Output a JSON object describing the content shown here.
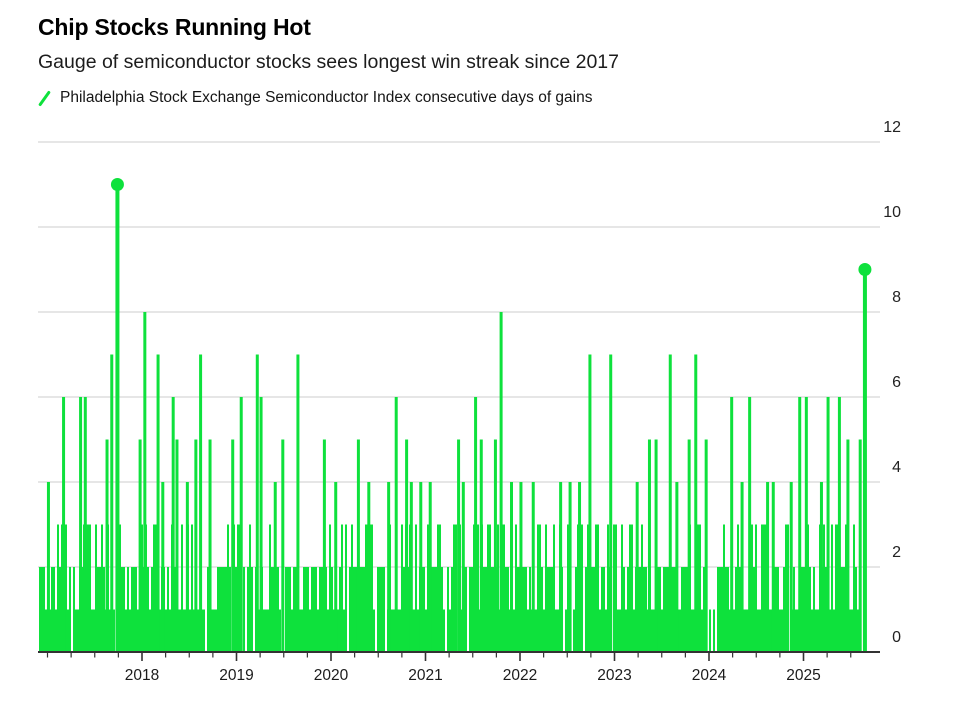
{
  "header": {
    "title": "Chip Stocks Running Hot",
    "subtitle": "Gauge of semiconductor stocks sees longest win streak since 2017"
  },
  "legend": {
    "label": "Philadelphia Stock Exchange Semiconductor Index consecutive days of gains"
  },
  "chart_data": {
    "type": "bar",
    "title": "Chip Stocks Running Hot",
    "subtitle": "Gauge of semiconductor stocks sees longest win streak since 2017",
    "series_name": "Philadelphia Stock Exchange Semiconductor Index consecutive days of gains",
    "ylabel": "consecutive days of gains",
    "ylim": [
      0,
      12
    ],
    "yticks": [
      0,
      2,
      4,
      6,
      8,
      10,
      12
    ],
    "axis_side": "right",
    "grid": "horizontal",
    "legend_position": "top-left",
    "x_range": [
      2016.91,
      2025.72
    ],
    "x_year_labels": [
      "2018",
      "2019",
      "2020",
      "2021",
      "2022",
      "2023",
      "2024",
      "2025"
    ],
    "minor_tick_interval_years": 0.25,
    "markers": [
      {
        "x": 2017.74,
        "v": 11
      },
      {
        "x": 2025.65,
        "v": 9
      }
    ],
    "streaks": [
      {
        "x": 2017.01,
        "v": 4
      },
      {
        "x": 2017.17,
        "v": 6
      },
      {
        "x": 2017.35,
        "v": 6
      },
      {
        "x": 2017.4,
        "v": 6
      },
      {
        "x": 2017.63,
        "v": 5
      },
      {
        "x": 2017.68,
        "v": 7
      },
      {
        "x": 2017.98,
        "v": 5
      },
      {
        "x": 2018.03,
        "v": 8
      },
      {
        "x": 2018.17,
        "v": 7
      },
      {
        "x": 2018.22,
        "v": 4
      },
      {
        "x": 2018.33,
        "v": 6
      },
      {
        "x": 2018.37,
        "v": 5
      },
      {
        "x": 2018.48,
        "v": 4
      },
      {
        "x": 2018.57,
        "v": 5
      },
      {
        "x": 2018.62,
        "v": 7
      },
      {
        "x": 2018.72,
        "v": 5
      },
      {
        "x": 2018.96,
        "v": 5
      },
      {
        "x": 2019.05,
        "v": 6
      },
      {
        "x": 2019.22,
        "v": 7
      },
      {
        "x": 2019.26,
        "v": 6
      },
      {
        "x": 2019.41,
        "v": 4
      },
      {
        "x": 2019.49,
        "v": 5
      },
      {
        "x": 2019.65,
        "v": 7
      },
      {
        "x": 2019.93,
        "v": 5
      },
      {
        "x": 2020.05,
        "v": 4
      },
      {
        "x": 2020.29,
        "v": 5
      },
      {
        "x": 2020.4,
        "v": 4
      },
      {
        "x": 2020.61,
        "v": 4
      },
      {
        "x": 2020.69,
        "v": 6
      },
      {
        "x": 2020.8,
        "v": 5
      },
      {
        "x": 2020.85,
        "v": 4
      },
      {
        "x": 2020.95,
        "v": 4
      },
      {
        "x": 2021.05,
        "v": 4
      },
      {
        "x": 2021.35,
        "v": 5
      },
      {
        "x": 2021.4,
        "v": 4
      },
      {
        "x": 2021.53,
        "v": 6
      },
      {
        "x": 2021.59,
        "v": 5
      },
      {
        "x": 2021.74,
        "v": 5
      },
      {
        "x": 2021.8,
        "v": 8
      },
      {
        "x": 2021.91,
        "v": 4
      },
      {
        "x": 2022.01,
        "v": 4
      },
      {
        "x": 2022.14,
        "v": 4
      },
      {
        "x": 2022.43,
        "v": 4
      },
      {
        "x": 2022.53,
        "v": 4
      },
      {
        "x": 2022.63,
        "v": 4
      },
      {
        "x": 2022.74,
        "v": 7
      },
      {
        "x": 2022.96,
        "v": 7
      },
      {
        "x": 2023.24,
        "v": 4
      },
      {
        "x": 2023.37,
        "v": 5
      },
      {
        "x": 2023.44,
        "v": 5
      },
      {
        "x": 2023.59,
        "v": 7
      },
      {
        "x": 2023.66,
        "v": 4
      },
      {
        "x": 2023.79,
        "v": 5
      },
      {
        "x": 2023.86,
        "v": 7
      },
      {
        "x": 2023.97,
        "v": 5
      },
      {
        "x": 2024.24,
        "v": 6
      },
      {
        "x": 2024.35,
        "v": 4
      },
      {
        "x": 2024.43,
        "v": 6
      },
      {
        "x": 2024.62,
        "v": 4
      },
      {
        "x": 2024.68,
        "v": 4
      },
      {
        "x": 2024.87,
        "v": 4
      },
      {
        "x": 2024.96,
        "v": 6
      },
      {
        "x": 2025.03,
        "v": 6
      },
      {
        "x": 2025.19,
        "v": 4
      },
      {
        "x": 2025.26,
        "v": 6
      },
      {
        "x": 2025.38,
        "v": 6
      },
      {
        "x": 2025.47,
        "v": 5
      },
      {
        "x": 2025.6,
        "v": 5
      }
    ],
    "baseline": {
      "note": "dense daily bars of short 1-3 day win streaks filling the whole period",
      "start": 2016.91,
      "end": 2025.6,
      "values": [
        1,
        2,
        3
      ],
      "weights": [
        0.3,
        0.46,
        0.18
      ],
      "gap_probability": 0.06
    },
    "colors": {
      "bar": "#0ee13c",
      "grid": "#d8d8d8",
      "axis": "#333333",
      "tick": "#333333",
      "label": "#1c1c1c",
      "background": "#ffffff"
    }
  }
}
